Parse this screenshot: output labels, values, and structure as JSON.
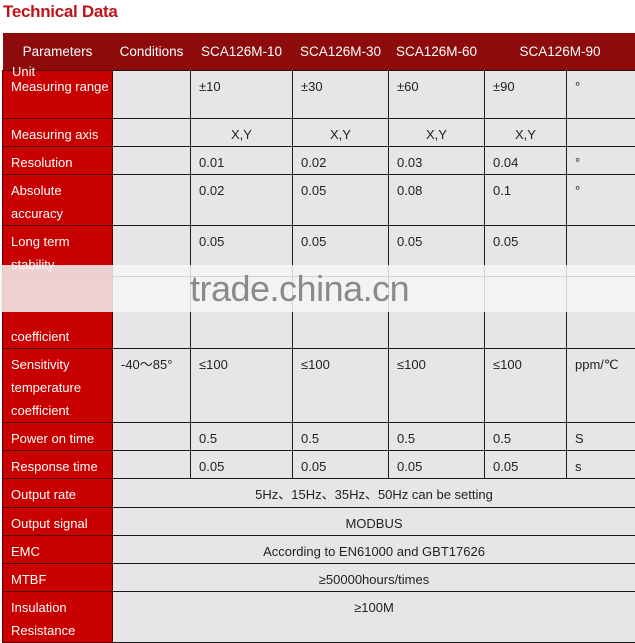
{
  "title": "Technical Data",
  "header": [
    "Parameters",
    "Conditions",
    "SCA126M-10",
    "SCA126M-30",
    "SCA126M-60",
    "SCA126M-90"
  ],
  "unit_header": "Unit",
  "rows": [
    {
      "label": "Measuring range",
      "cond": "",
      "values": [
        "±10",
        "±30",
        "±60",
        "±90"
      ],
      "unit": "°"
    },
    {
      "label": "Measuring axis",
      "cond": "",
      "values": [
        "X,Y",
        "X,Y",
        "X,Y",
        "X,Y"
      ],
      "unit": "",
      "center": true
    },
    {
      "label": "Resolution",
      "cond": "",
      "values": [
        "0.01",
        "0.02",
        "0.03",
        "0.04"
      ],
      "unit": "°"
    },
    {
      "label": "Absolute accuracy",
      "cond": "",
      "values": [
        "0.02",
        "0.05",
        "0.08",
        "0.1"
      ],
      "unit": "°"
    },
    {
      "label": "Long term stability",
      "cond": "",
      "values": [
        "0.05",
        "0.05",
        "0.05",
        "0.05"
      ],
      "unit": ""
    },
    {
      "label": "coefficient",
      "cond": "",
      "values": [
        "",
        "",
        "",
        ""
      ],
      "unit": "",
      "bottom": true
    },
    {
      "label": "Sensitivity temperature coefficient",
      "cond": "-40～85°",
      "values": [
        "≤100",
        "≤100",
        "≤100",
        "≤100"
      ],
      "unit": "ppm/℃"
    },
    {
      "label": "Power on time",
      "cond": "",
      "values": [
        "0.5",
        "0.5",
        "0.5",
        "0.5"
      ],
      "unit": "S"
    },
    {
      "label": "Response time",
      "cond": "",
      "values": [
        "0.05",
        "0.05",
        "0.05",
        "0.05"
      ],
      "unit": "s"
    },
    {
      "label": "Output rate",
      "span": "5Hz、15Hz、35Hz、50Hz can be setting"
    },
    {
      "label": "Output signal",
      "span": "MODBUS"
    },
    {
      "label": "EMC",
      "span": "According to EN61000 and GBT17626"
    },
    {
      "label": "MTBF",
      "span": "≥50000hours/times"
    },
    {
      "label": "Insulation Resistance",
      "span": "≥100M"
    }
  ],
  "watermark": "trade.china.cn",
  "colors": {
    "title": "#c0141b",
    "header_bg": "#8e0b0b",
    "param_bg": "#c80000",
    "cell_bg": "#e6e6e6"
  }
}
